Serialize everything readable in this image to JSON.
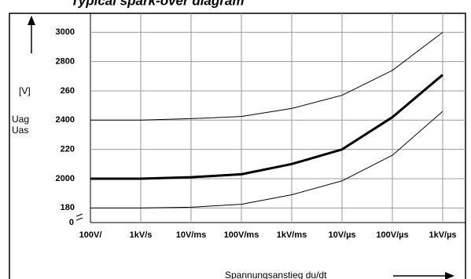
{
  "chart_data": {
    "type": "line",
    "title": "Typical spark-over diagram",
    "y_label_lines": [
      "[V]",
      "Uag",
      "Uas"
    ],
    "x_label": "Spannungsanstieg  du/dt",
    "axis_break_label": "0",
    "categories": [
      "100V/",
      "1kV/s",
      "10V/ms",
      "100V/ms",
      "1kV/ms",
      "10V/µs",
      "100V/µs",
      "1kV/µs"
    ],
    "series": [
      {
        "color": "#000000",
        "width": 1,
        "values": [
          2400,
          2400,
          2410,
          2425,
          2480,
          2570,
          2740,
          3000
        ]
      },
      {
        "color": "#000000",
        "width": 3,
        "values": [
          2000,
          2000,
          2010,
          2030,
          2100,
          2200,
          2420,
          2710
        ]
      },
      {
        "color": "#000000",
        "width": 1,
        "values": [
          1800,
          1800,
          1805,
          1825,
          1890,
          1985,
          2160,
          2460
        ]
      }
    ],
    "ylim": [
      1700,
      3130
    ],
    "yticks": [
      {
        "value": 1800,
        "label": "180"
      },
      2000,
      {
        "value": 2200,
        "label": "220"
      },
      2400,
      {
        "value": 2600,
        "label": "260"
      },
      2800,
      3000
    ],
    "grid": true
  }
}
